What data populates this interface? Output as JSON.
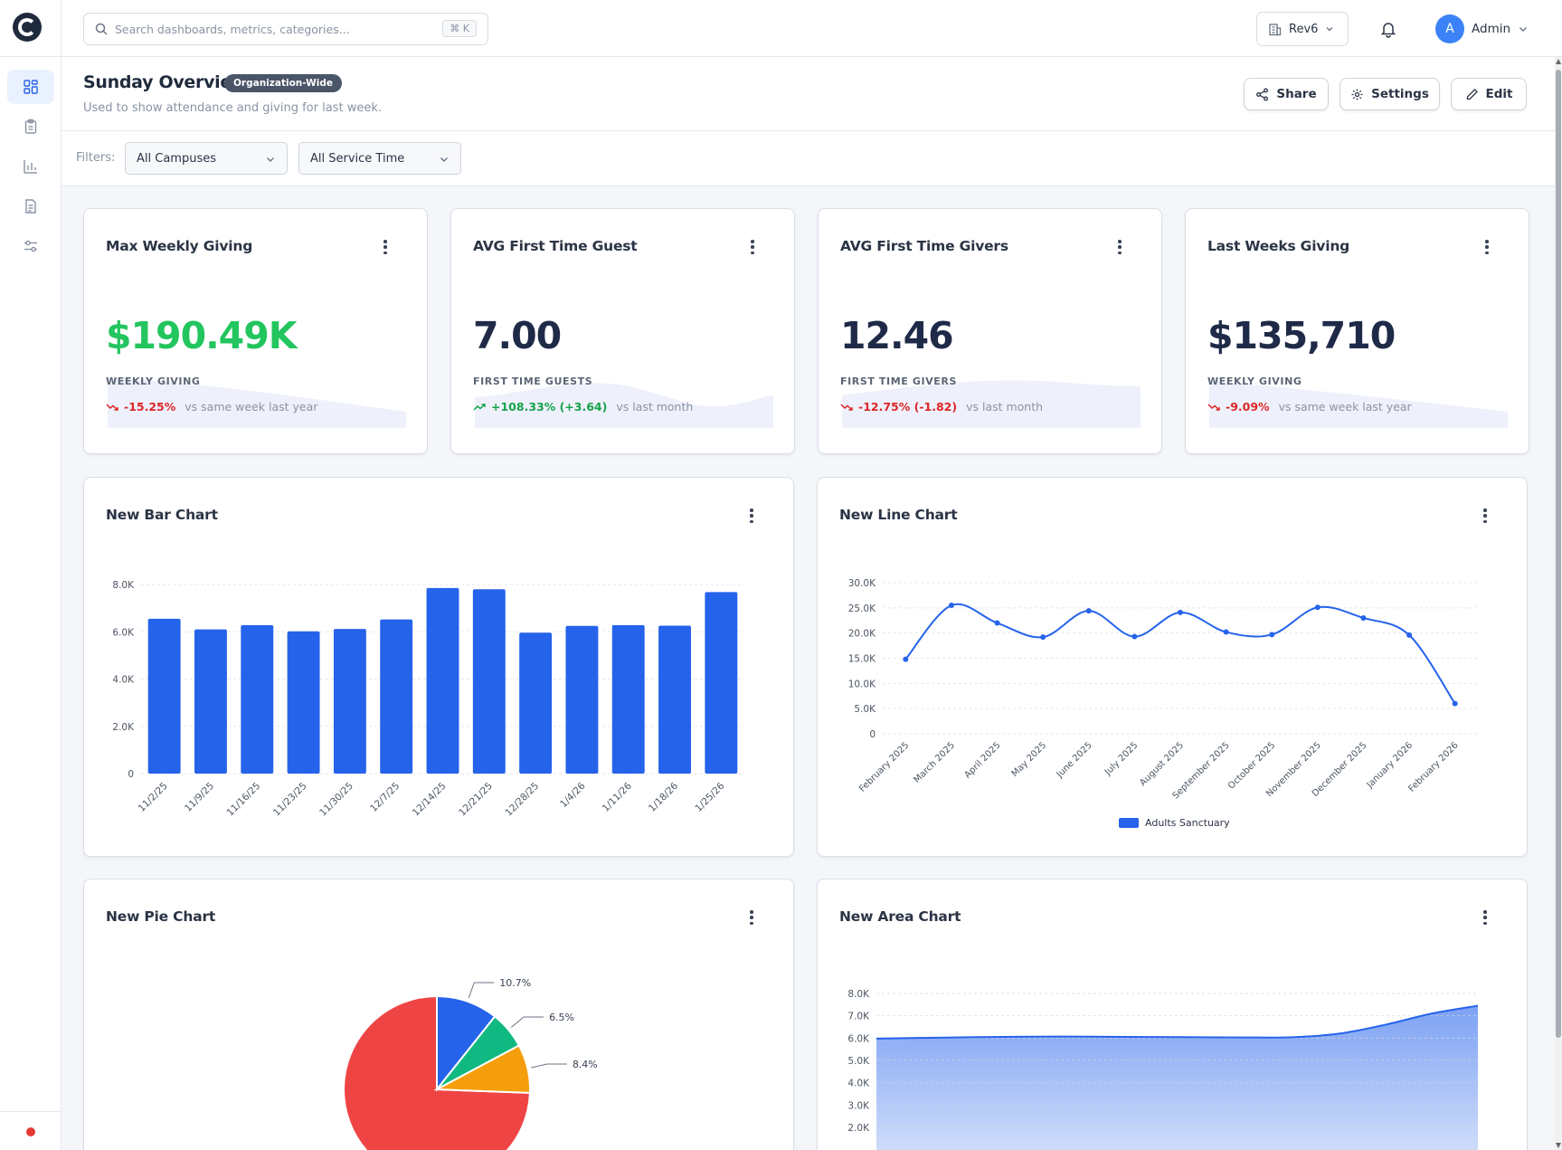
{
  "topbar": {
    "search_placeholder": "Search dashboards, metrics, categories...",
    "search_shortcut": "⌘ K",
    "org_name": "Rev6",
    "user_initial": "A",
    "user_name": "Admin"
  },
  "page": {
    "title": "Sunday Overview",
    "badge": "Organization-Wide",
    "description": "Used to show attendance and giving for last week.",
    "share_label": "Share",
    "settings_label": "Settings",
    "edit_label": "Edit"
  },
  "filters": {
    "label": "Filters:",
    "campus": "All Campuses",
    "service_time": "All Service Time"
  },
  "kpis": [
    {
      "title": "Max Weekly Giving",
      "value": "$190.49K",
      "value_color": "#22c55e",
      "label": "WEEKLY GIVING",
      "change": "-15.25%",
      "trend": "down",
      "comparison": "vs same week last year"
    },
    {
      "title": "AVG First Time Guest",
      "value": "7.00",
      "value_color": "#1f2a48",
      "label": "FIRST TIME GUESTS",
      "change": "+108.33% (+3.64)",
      "trend": "up",
      "comparison": "vs last month"
    },
    {
      "title": "AVG First Time Givers",
      "value": "12.46",
      "value_color": "#1f2a48",
      "label": "FIRST TIME GIVERS",
      "change": "-12.75% (-1.82)",
      "trend": "down",
      "comparison": "vs last month"
    },
    {
      "title": "Last Weeks Giving",
      "value": "$135,710",
      "value_color": "#1f2a48",
      "label": "WEEKLY GIVING",
      "change": "-9.09%",
      "trend": "down",
      "comparison": "vs same week last year"
    }
  ],
  "colors": {
    "primary": "#2563eb",
    "positive": "#16a34a",
    "negative": "#dc2626",
    "pie": [
      "#ef4444",
      "#2563eb",
      "#10b981",
      "#f59e0b"
    ]
  },
  "charts": {
    "bar_title": "New Bar Chart",
    "line_title": "New Line Chart",
    "pie_title": "New Pie Chart",
    "area_title": "New Area Chart"
  },
  "chart_data": [
    {
      "type": "bar",
      "title": "New Bar Chart",
      "categories": [
        "11/2/25",
        "11/9/25",
        "11/16/25",
        "11/23/25",
        "11/30/25",
        "12/7/25",
        "12/14/25",
        "12/21/25",
        "12/28/25",
        "1/4/26",
        "1/11/26",
        "1/18/26",
        "1/25/26"
      ],
      "values": [
        6550,
        6100,
        6280,
        6020,
        6120,
        6520,
        7850,
        7800,
        5960,
        6250,
        6280,
        6260,
        7680
      ],
      "ylim": [
        0,
        8000
      ],
      "yticks": [
        "0",
        "2.0K",
        "4.0K",
        "6.0K",
        "8.0K"
      ],
      "grid": true
    },
    {
      "type": "line",
      "title": "New Line Chart",
      "categories": [
        "February 2025",
        "March 2025",
        "April 2025",
        "May 2025",
        "June 2025",
        "July 2025",
        "August 2025",
        "September 2025",
        "October 2025",
        "November 2025",
        "December 2025",
        "January 2026",
        "February 2026"
      ],
      "series": [
        {
          "name": "Adults Sanctuary",
          "values": [
            14800,
            25500,
            22000,
            19200,
            24400,
            19300,
            24100,
            20200,
            19700,
            25100,
            23000,
            19600,
            6000
          ]
        }
      ],
      "ylim": [
        0,
        30000
      ],
      "yticks": [
        "0",
        "5.0K",
        "10.0K",
        "15.0K",
        "20.0K",
        "25.0K",
        "30.0K"
      ],
      "legend": "bottom",
      "grid": true
    },
    {
      "type": "pie",
      "title": "New Pie Chart",
      "slices": [
        {
          "value": 74.4,
          "label": ""
        },
        {
          "value": 10.7,
          "label": "10.7%"
        },
        {
          "value": 6.5,
          "label": "6.5%"
        },
        {
          "value": 8.4,
          "label": "8.4%"
        }
      ]
    },
    {
      "type": "area",
      "title": "New Area Chart",
      "values": [
        5980,
        6010,
        6040,
        6060,
        6070,
        6060,
        6050,
        6040,
        6030,
        6040,
        6200,
        6600,
        7100,
        7450
      ],
      "ylim": [
        1800,
        8000
      ],
      "yticks": [
        "2.0K",
        "3.0K",
        "4.0K",
        "5.0K",
        "6.0K",
        "7.0K",
        "8.0K"
      ],
      "grid": true
    }
  ]
}
